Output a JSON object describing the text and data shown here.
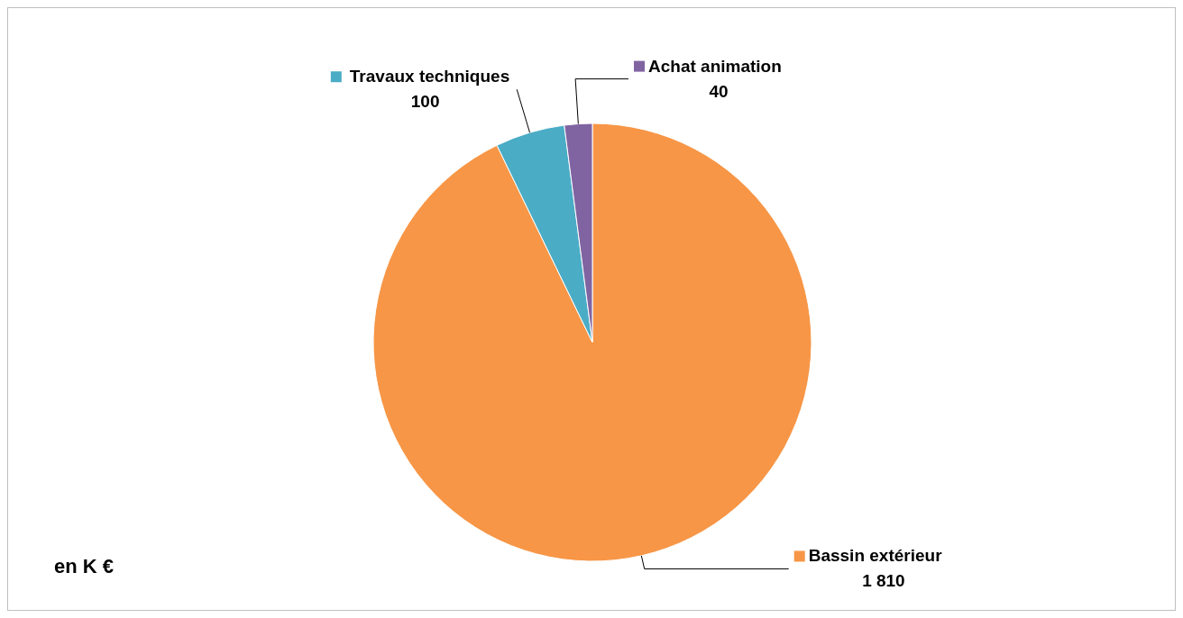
{
  "chart_data": {
    "type": "pie",
    "categories": [
      "Bassin extérieur",
      "Travaux techniques",
      "Achat animation"
    ],
    "values": [
      1810,
      100,
      40
    ],
    "value_labels": [
      "1 810",
      "100",
      "40"
    ],
    "colors": [
      "#f79646",
      "#4bacc6",
      "#8064a2"
    ],
    "legend": "top",
    "annotations": [
      "en K €"
    ]
  }
}
